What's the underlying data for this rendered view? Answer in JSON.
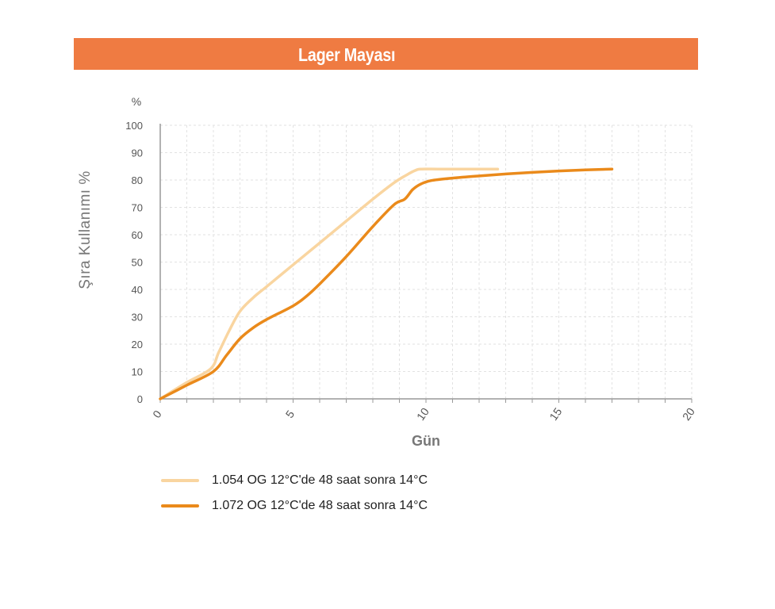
{
  "header": {
    "title": "Lager Mayası"
  },
  "colors": {
    "header_bg": "#ef7b42",
    "series_light": "#f9d5a0",
    "series_dark": "#ea8a1b",
    "axis": "#999999",
    "grid": "#e2e2e2"
  },
  "chart_data": {
    "type": "line",
    "title": "Lager Mayası",
    "xlabel": "Gün",
    "ylabel": "Şıra Kullanımı %",
    "yunit": "%",
    "xlim": [
      0,
      20
    ],
    "ylim": [
      0,
      100
    ],
    "xticks": [
      0,
      5,
      10,
      15,
      20
    ],
    "yticks": [
      0,
      10,
      20,
      30,
      40,
      50,
      60,
      70,
      80,
      90,
      100
    ],
    "grid": true,
    "legend_position": "bottom-left",
    "series": [
      {
        "name": "1.054 OG 12°C'de 48 saat sonra 14°C",
        "color": "#f9d5a0",
        "x": [
          0,
          1,
          1.9,
          2.2,
          2.6,
          3.0,
          3.5,
          4.0,
          5.0,
          6.0,
          7.0,
          8.0,
          8.8,
          9.3,
          9.6,
          9.8,
          10.5,
          11.5,
          12.7
        ],
        "y": [
          0,
          6,
          11,
          17,
          25,
          32,
          37,
          41,
          49,
          57,
          65,
          73,
          79,
          82,
          83.5,
          84,
          84,
          84,
          84
        ]
      },
      {
        "name": "1.072 OG 12°C'de 48 saat sonra 14°C",
        "color": "#ea8a1b",
        "x": [
          0,
          1,
          2.0,
          2.5,
          3.0,
          3.5,
          4.0,
          5.0,
          5.5,
          6.0,
          7.0,
          8.0,
          8.8,
          9.2,
          9.5,
          9.8,
          10.2,
          11.0,
          12.0,
          13.0,
          14.0,
          15.0,
          16.0,
          17.0
        ],
        "y": [
          0,
          5,
          10,
          16,
          22,
          26,
          29,
          34,
          37.5,
          42,
          52,
          63,
          71,
          73,
          76.5,
          78.5,
          79.8,
          80.7,
          81.5,
          82.2,
          82.8,
          83.3,
          83.7,
          84
        ]
      }
    ]
  }
}
